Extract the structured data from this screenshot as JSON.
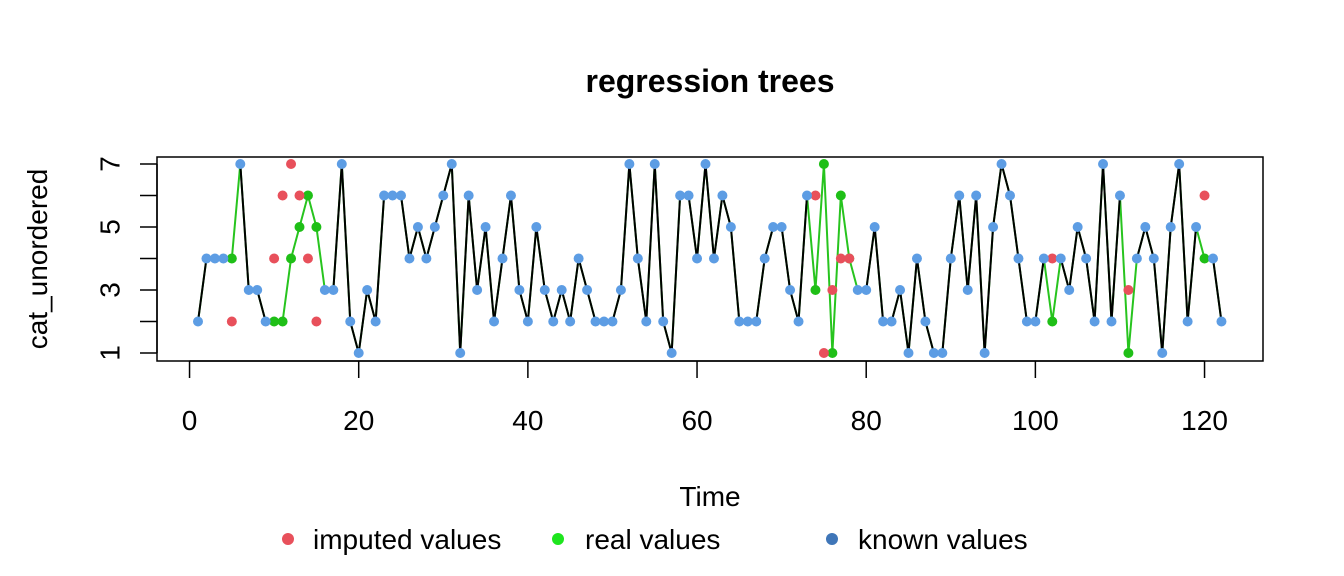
{
  "chart_data": {
    "type": "line",
    "title": "regression trees",
    "xlabel": "Time",
    "ylabel": "cat_unordered",
    "xlim": [
      0,
      126
    ],
    "ylim": [
      1,
      7
    ],
    "x_ticks": [
      0,
      20,
      40,
      60,
      80,
      100,
      120
    ],
    "y_ticks": [
      1,
      3,
      5,
      7
    ],
    "legend": {
      "position": "bottom",
      "entries": [
        {
          "label": "imputed values",
          "color": "#e8505b"
        },
        {
          "label": "real values",
          "color": "#1ee51e"
        },
        {
          "label": "known values",
          "color": "#3f76b8"
        }
      ]
    },
    "colors": {
      "known_line": "#000000",
      "real_line": "#27c41e",
      "known_point": "#5d9de4",
      "imputed_point": "#e8505b",
      "real_point": "#1fbf17"
    },
    "series": [
      {
        "name": "known values",
        "points": [
          [
            1,
            2
          ],
          [
            2,
            4
          ],
          [
            3,
            4
          ],
          [
            4,
            4
          ],
          [
            6,
            7
          ],
          [
            7,
            3
          ],
          [
            8,
            3
          ],
          [
            9,
            2
          ],
          [
            16,
            3
          ],
          [
            17,
            3
          ],
          [
            18,
            7
          ],
          [
            19,
            2
          ],
          [
            20,
            1
          ],
          [
            21,
            3
          ],
          [
            22,
            2
          ],
          [
            23,
            6
          ],
          [
            24,
            6
          ],
          [
            25,
            6
          ],
          [
            26,
            4
          ],
          [
            27,
            5
          ],
          [
            28,
            4
          ],
          [
            29,
            5
          ],
          [
            30,
            6
          ],
          [
            31,
            7
          ],
          [
            32,
            1
          ],
          [
            33,
            6
          ],
          [
            34,
            3
          ],
          [
            35,
            5
          ],
          [
            36,
            2
          ],
          [
            37,
            4
          ],
          [
            38,
            6
          ],
          [
            39,
            3
          ],
          [
            40,
            2
          ],
          [
            41,
            5
          ],
          [
            42,
            3
          ],
          [
            43,
            2
          ],
          [
            44,
            3
          ],
          [
            45,
            2
          ],
          [
            46,
            4
          ],
          [
            47,
            3
          ],
          [
            48,
            2
          ],
          [
            49,
            2
          ],
          [
            50,
            2
          ],
          [
            51,
            3
          ],
          [
            52,
            7
          ],
          [
            53,
            4
          ],
          [
            54,
            2
          ],
          [
            55,
            7
          ],
          [
            56,
            2
          ],
          [
            57,
            1
          ],
          [
            58,
            6
          ],
          [
            59,
            6
          ],
          [
            60,
            4
          ],
          [
            61,
            7
          ],
          [
            62,
            4
          ],
          [
            63,
            6
          ],
          [
            64,
            5
          ],
          [
            65,
            2
          ],
          [
            66,
            2
          ],
          [
            67,
            2
          ],
          [
            68,
            4
          ],
          [
            69,
            5
          ],
          [
            70,
            5
          ],
          [
            71,
            3
          ],
          [
            72,
            2
          ],
          [
            73,
            6
          ],
          [
            79,
            3
          ],
          [
            80,
            3
          ],
          [
            81,
            5
          ],
          [
            82,
            2
          ],
          [
            83,
            2
          ],
          [
            84,
            3
          ],
          [
            85,
            1
          ],
          [
            86,
            4
          ],
          [
            87,
            2
          ],
          [
            88,
            1
          ],
          [
            89,
            1
          ],
          [
            90,
            4
          ],
          [
            91,
            6
          ],
          [
            92,
            3
          ],
          [
            93,
            6
          ],
          [
            94,
            1
          ],
          [
            95,
            5
          ],
          [
            96,
            7
          ],
          [
            97,
            6
          ],
          [
            98,
            4
          ],
          [
            99,
            2
          ],
          [
            100,
            2
          ],
          [
            101,
            4
          ],
          [
            103,
            4
          ],
          [
            104,
            3
          ],
          [
            105,
            5
          ],
          [
            106,
            4
          ],
          [
            107,
            2
          ],
          [
            108,
            7
          ],
          [
            109,
            2
          ],
          [
            110,
            6
          ],
          [
            112,
            4
          ],
          [
            113,
            5
          ],
          [
            114,
            4
          ],
          [
            115,
            1
          ],
          [
            116,
            5
          ],
          [
            117,
            7
          ],
          [
            118,
            2
          ],
          [
            119,
            5
          ],
          [
            121,
            4
          ],
          [
            122,
            2
          ]
        ]
      },
      {
        "name": "imputed values",
        "points": [
          [
            5,
            2
          ],
          [
            10,
            4
          ],
          [
            11,
            6
          ],
          [
            12,
            7
          ],
          [
            13,
            6
          ],
          [
            14,
            4
          ],
          [
            15,
            2
          ],
          [
            74,
            6
          ],
          [
            75,
            1
          ],
          [
            76,
            3
          ],
          [
            77,
            4
          ],
          [
            78,
            4
          ],
          [
            102,
            4
          ],
          [
            111,
            3
          ],
          [
            120,
            6
          ]
        ]
      },
      {
        "name": "real values",
        "points": [
          [
            5,
            4
          ],
          [
            10,
            2
          ],
          [
            11,
            2
          ],
          [
            12,
            4
          ],
          [
            13,
            5
          ],
          [
            14,
            6
          ],
          [
            15,
            5
          ],
          [
            74,
            3
          ],
          [
            75,
            7
          ],
          [
            76,
            1
          ],
          [
            77,
            6
          ],
          [
            78,
            4
          ],
          [
            102,
            2
          ],
          [
            111,
            1
          ],
          [
            120,
            4
          ]
        ]
      }
    ]
  }
}
